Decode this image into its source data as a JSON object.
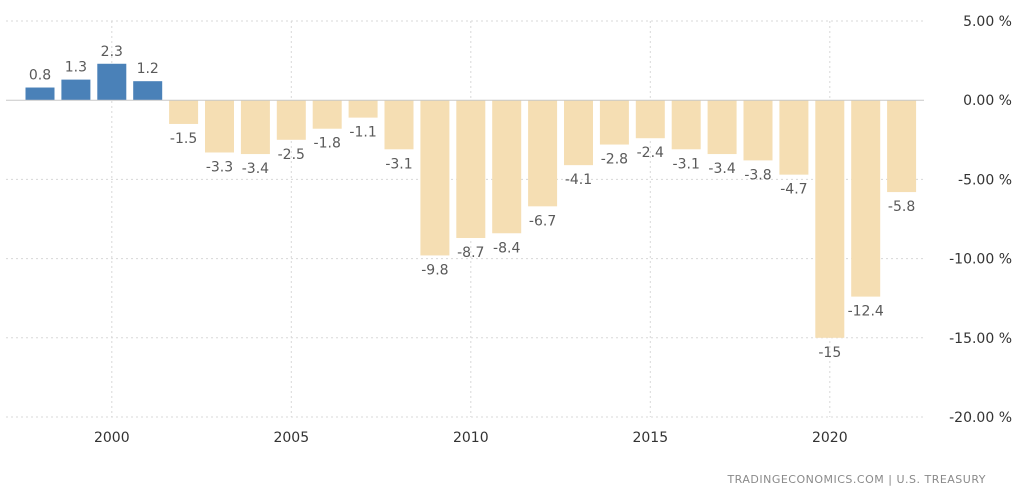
{
  "source": "TRADINGECONOMICS.COM  |  U.S. TREASURY",
  "colors": {
    "positive": "#4a81b8",
    "negative": "#f5deb3"
  },
  "chart_data": {
    "type": "bar",
    "x": [
      1998,
      1999,
      2000,
      2001,
      2002,
      2003,
      2004,
      2005,
      2006,
      2007,
      2008,
      2009,
      2010,
      2011,
      2012,
      2013,
      2014,
      2015,
      2016,
      2017,
      2018,
      2019,
      2020,
      2021,
      2022
    ],
    "values": [
      0.8,
      1.3,
      2.3,
      1.2,
      -1.5,
      -3.3,
      -3.4,
      -2.5,
      -1.8,
      -1.1,
      -3.1,
      -9.8,
      -8.7,
      -8.4,
      -6.7,
      -4.1,
      -2.8,
      -2.4,
      -3.1,
      -3.4,
      -3.8,
      -4.7,
      -15,
      -12.4,
      -5.8
    ],
    "data_labels": [
      "0.8",
      "1.3",
      "2.3",
      "1.2",
      "-1.5",
      "-3.3",
      "-3.4",
      "-2.5",
      "-1.8",
      "-1.1",
      "-3.1",
      "-9.8",
      "-8.7",
      "-8.4",
      "-6.7",
      "-4.1",
      "-2.8",
      "-2.4",
      "-3.1",
      "-3.4",
      "-3.8",
      "-4.7",
      "-15",
      "-12.4",
      "-5.8"
    ],
    "x_ticks": [
      "2000",
      "2005",
      "2010",
      "2015",
      "2020"
    ],
    "y_ticks": [
      "5.00 %",
      "0.00 %",
      "-5.00 %",
      "-10.00 %",
      "-15.00 %",
      "-20.00 %"
    ],
    "y_tick_values": [
      5,
      0,
      -5,
      -10,
      -15,
      -20
    ],
    "ylim": [
      -20,
      5
    ],
    "y_axis_side": "right",
    "grid": true
  }
}
